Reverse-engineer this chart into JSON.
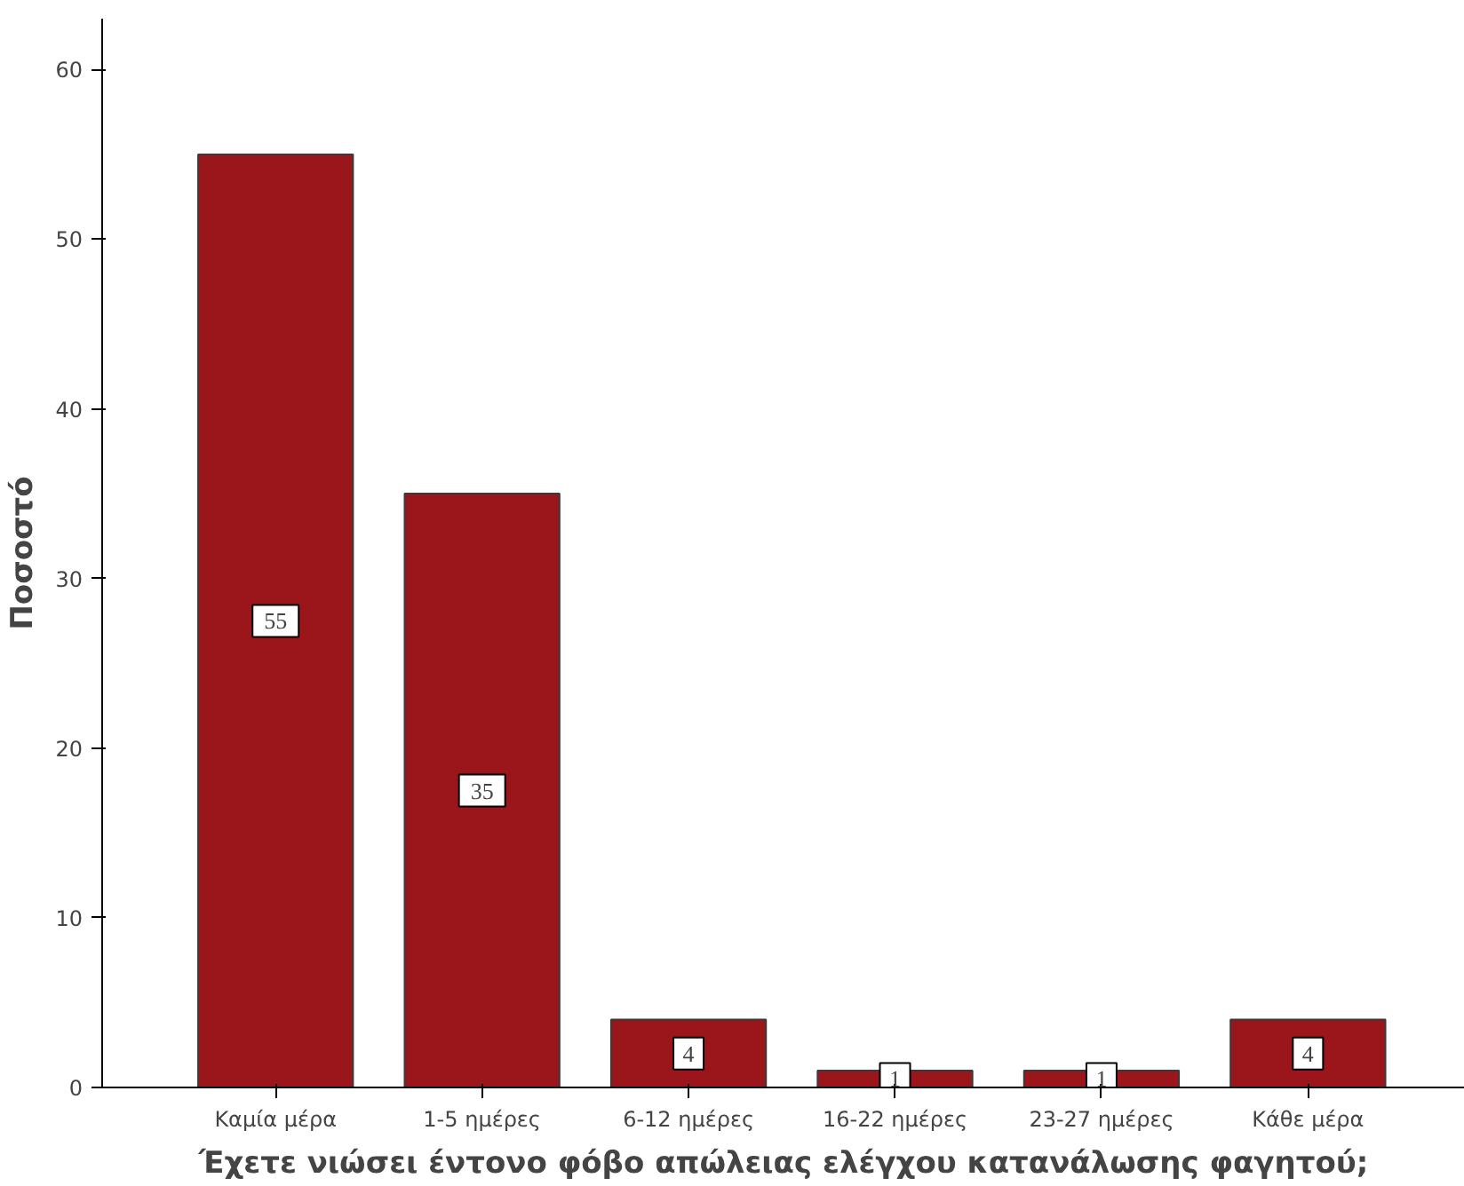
{
  "chart_data": {
    "type": "bar",
    "xlabel": "Έχετε νιώσει έντονο φόβο απώλειας ελέγχου κατανάλωσης φαγητού;",
    "ylabel": "Ποσοστό",
    "categories": [
      "Καμία μέρα",
      "1-5 ημέρες",
      "6-12 ημέρες",
      "16-22 ημέρες",
      "23-27 ημέρες",
      "Κάθε μέρα"
    ],
    "values": [
      55,
      35,
      4,
      1,
      1,
      4
    ],
    "color": "#9b161b",
    "ylim": [
      0,
      63
    ],
    "yticks": [
      0,
      10,
      20,
      30,
      40,
      50,
      60
    ],
    "data_labels": true,
    "grid": false
  }
}
